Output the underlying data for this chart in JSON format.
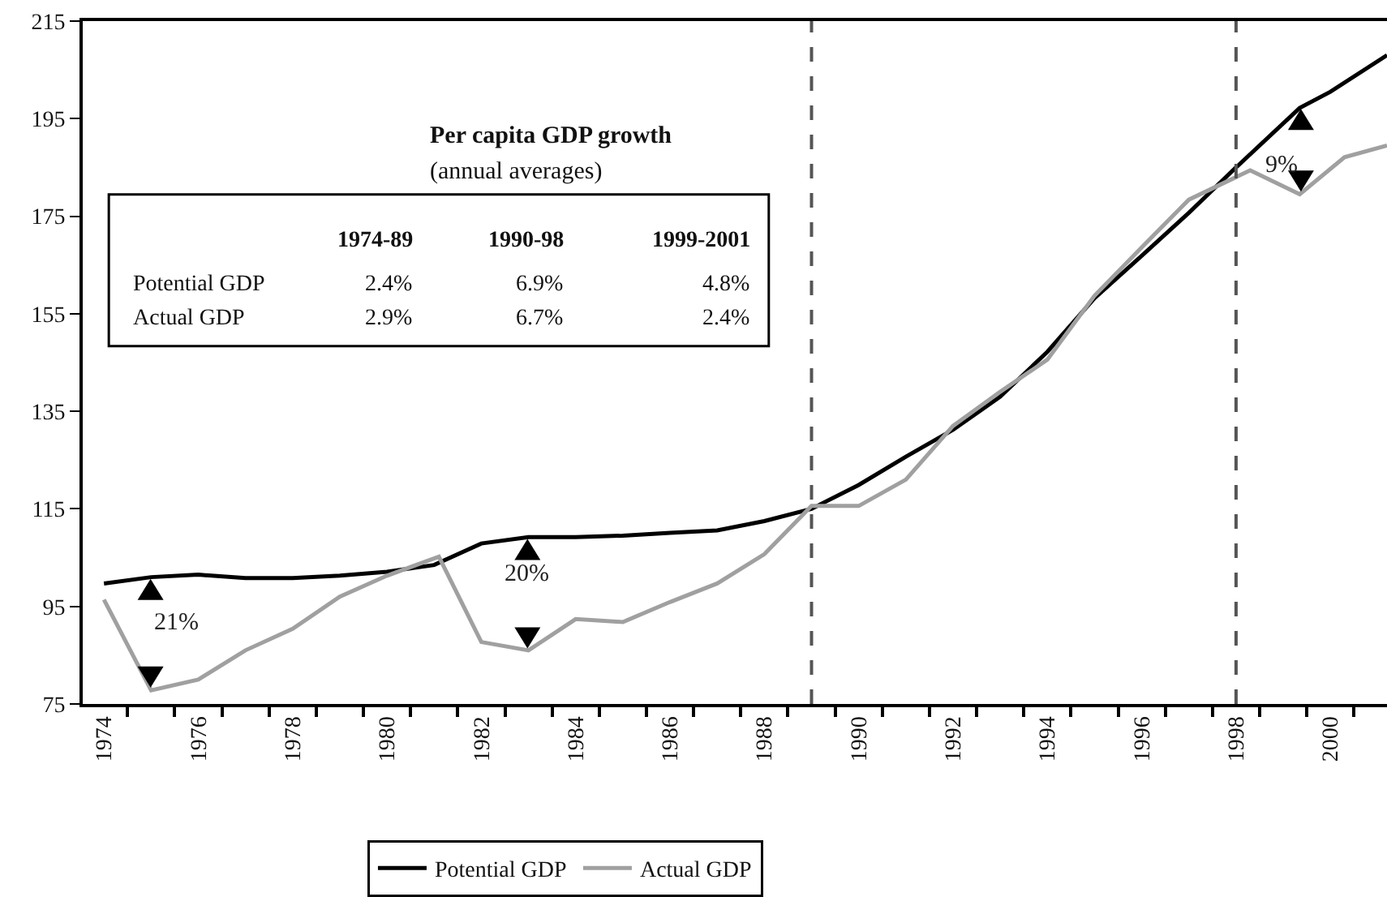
{
  "chart_data": {
    "type": "line",
    "xlim": [
      1973.55,
      2001.2
    ],
    "xticks": [
      {
        "value": 1974,
        "label": "1974"
      },
      {
        "value": 1974.5,
        "label": null
      },
      {
        "value": 1975.5,
        "label": null
      },
      {
        "value": 1976,
        "label": "1976"
      },
      {
        "value": 1976.5,
        "label": null
      },
      {
        "value": 1977.5,
        "label": null
      },
      {
        "value": 1978,
        "label": "1978"
      },
      {
        "value": 1978.5,
        "label": null
      },
      {
        "value": 1979.5,
        "label": null
      },
      {
        "value": 1980,
        "label": "1980"
      },
      {
        "value": 1980.5,
        "label": null
      },
      {
        "value": 1981.5,
        "label": null
      },
      {
        "value": 1982,
        "label": "1982"
      },
      {
        "value": 1982.5,
        "label": null
      },
      {
        "value": 1983.5,
        "label": null
      },
      {
        "value": 1984,
        "label": "1984"
      },
      {
        "value": 1984.5,
        "label": null
      },
      {
        "value": 1985.5,
        "label": null
      },
      {
        "value": 1986,
        "label": "1986"
      },
      {
        "value": 1986.5,
        "label": null
      },
      {
        "value": 1987.5,
        "label": null
      },
      {
        "value": 1988,
        "label": "1988"
      },
      {
        "value": 1988.5,
        "label": null
      },
      {
        "value": 1989.5,
        "label": null
      },
      {
        "value": 1990,
        "label": "1990"
      },
      {
        "value": 1990.5,
        "label": null
      },
      {
        "value": 1991.5,
        "label": null
      },
      {
        "value": 1992,
        "label": "1992"
      },
      {
        "value": 1992.5,
        "label": null
      },
      {
        "value": 1993.5,
        "label": null
      },
      {
        "value": 1994,
        "label": "1994"
      },
      {
        "value": 1994.5,
        "label": null
      },
      {
        "value": 1995.5,
        "label": null
      },
      {
        "value": 1996,
        "label": "1996"
      },
      {
        "value": 1996.5,
        "label": null
      },
      {
        "value": 1997.5,
        "label": null
      },
      {
        "value": 1998,
        "label": "1998"
      },
      {
        "value": 1998.5,
        "label": null
      },
      {
        "value": 1999.5,
        "label": null
      },
      {
        "value": 2000,
        "label": "2000"
      },
      {
        "value": 2000.5,
        "label": null
      }
    ],
    "ylim": [
      75,
      215
    ],
    "yticks": [
      75,
      95,
      115,
      135,
      155,
      175,
      195,
      215
    ],
    "grid": false,
    "legend": "bottom",
    "series": [
      {
        "name": "Potential GDP",
        "color": "#000000",
        "x": [
          1974,
          1975,
          1976,
          1977,
          1978,
          1979,
          1980,
          1981,
          1982,
          1983,
          1984,
          1985,
          1986,
          1987,
          1988,
          1989,
          1990,
          1991,
          1992,
          1993,
          1994,
          1995,
          1996,
          1997,
          1998,
          1999.35,
          2000,
          2001.2
        ],
        "values": [
          99.7,
          101,
          101.5,
          100.8,
          100.8,
          101.3,
          102.1,
          103.5,
          107.9,
          109.2,
          109.2,
          109.5,
          110.1,
          110.6,
          112.5,
          115,
          119.9,
          125.7,
          131.2,
          138,
          147.2,
          158.2,
          166.9,
          175.7,
          185,
          197.2,
          200.5,
          208
        ]
      },
      {
        "name": "Actual GDP",
        "color": "#a0a0a0",
        "x": [
          1974,
          1975,
          1976,
          1977,
          1978,
          1979,
          1980,
          1981.1,
          1982,
          1983,
          1984,
          1985,
          1986,
          1987,
          1988,
          1989,
          1990,
          1991,
          1992,
          1993,
          1994,
          1995,
          1996,
          1997,
          1998.3,
          1999.35,
          2000.3,
          2001.2
        ],
        "values": [
          96.4,
          77.8,
          80,
          86,
          90.4,
          97,
          101.3,
          105.2,
          87.7,
          86,
          92.4,
          91.8,
          95.9,
          99.7,
          105.7,
          115.6,
          115.6,
          121,
          132,
          139,
          145.6,
          158.7,
          168.6,
          178.4,
          184.4,
          179.5,
          187.1,
          189.5
        ]
      }
    ],
    "ref_lines": [
      {
        "axis": "x",
        "value": 1989,
        "color": "#555555",
        "line_style": "dashed"
      },
      {
        "axis": "x",
        "value": 1998,
        "color": "#555555",
        "line_style": "dashed"
      }
    ],
    "annotations": [
      "21%",
      "20%",
      "9%",
      "Per capita GDP growth",
      "(annual averages)",
      "1974-89",
      "1990-98",
      "1999-2001",
      "Potential GDP",
      "2.4%",
      "6.9%",
      "4.8%",
      "Actual GDP",
      "2.9%",
      "6.7%",
      "2.4%"
    ]
  }
}
